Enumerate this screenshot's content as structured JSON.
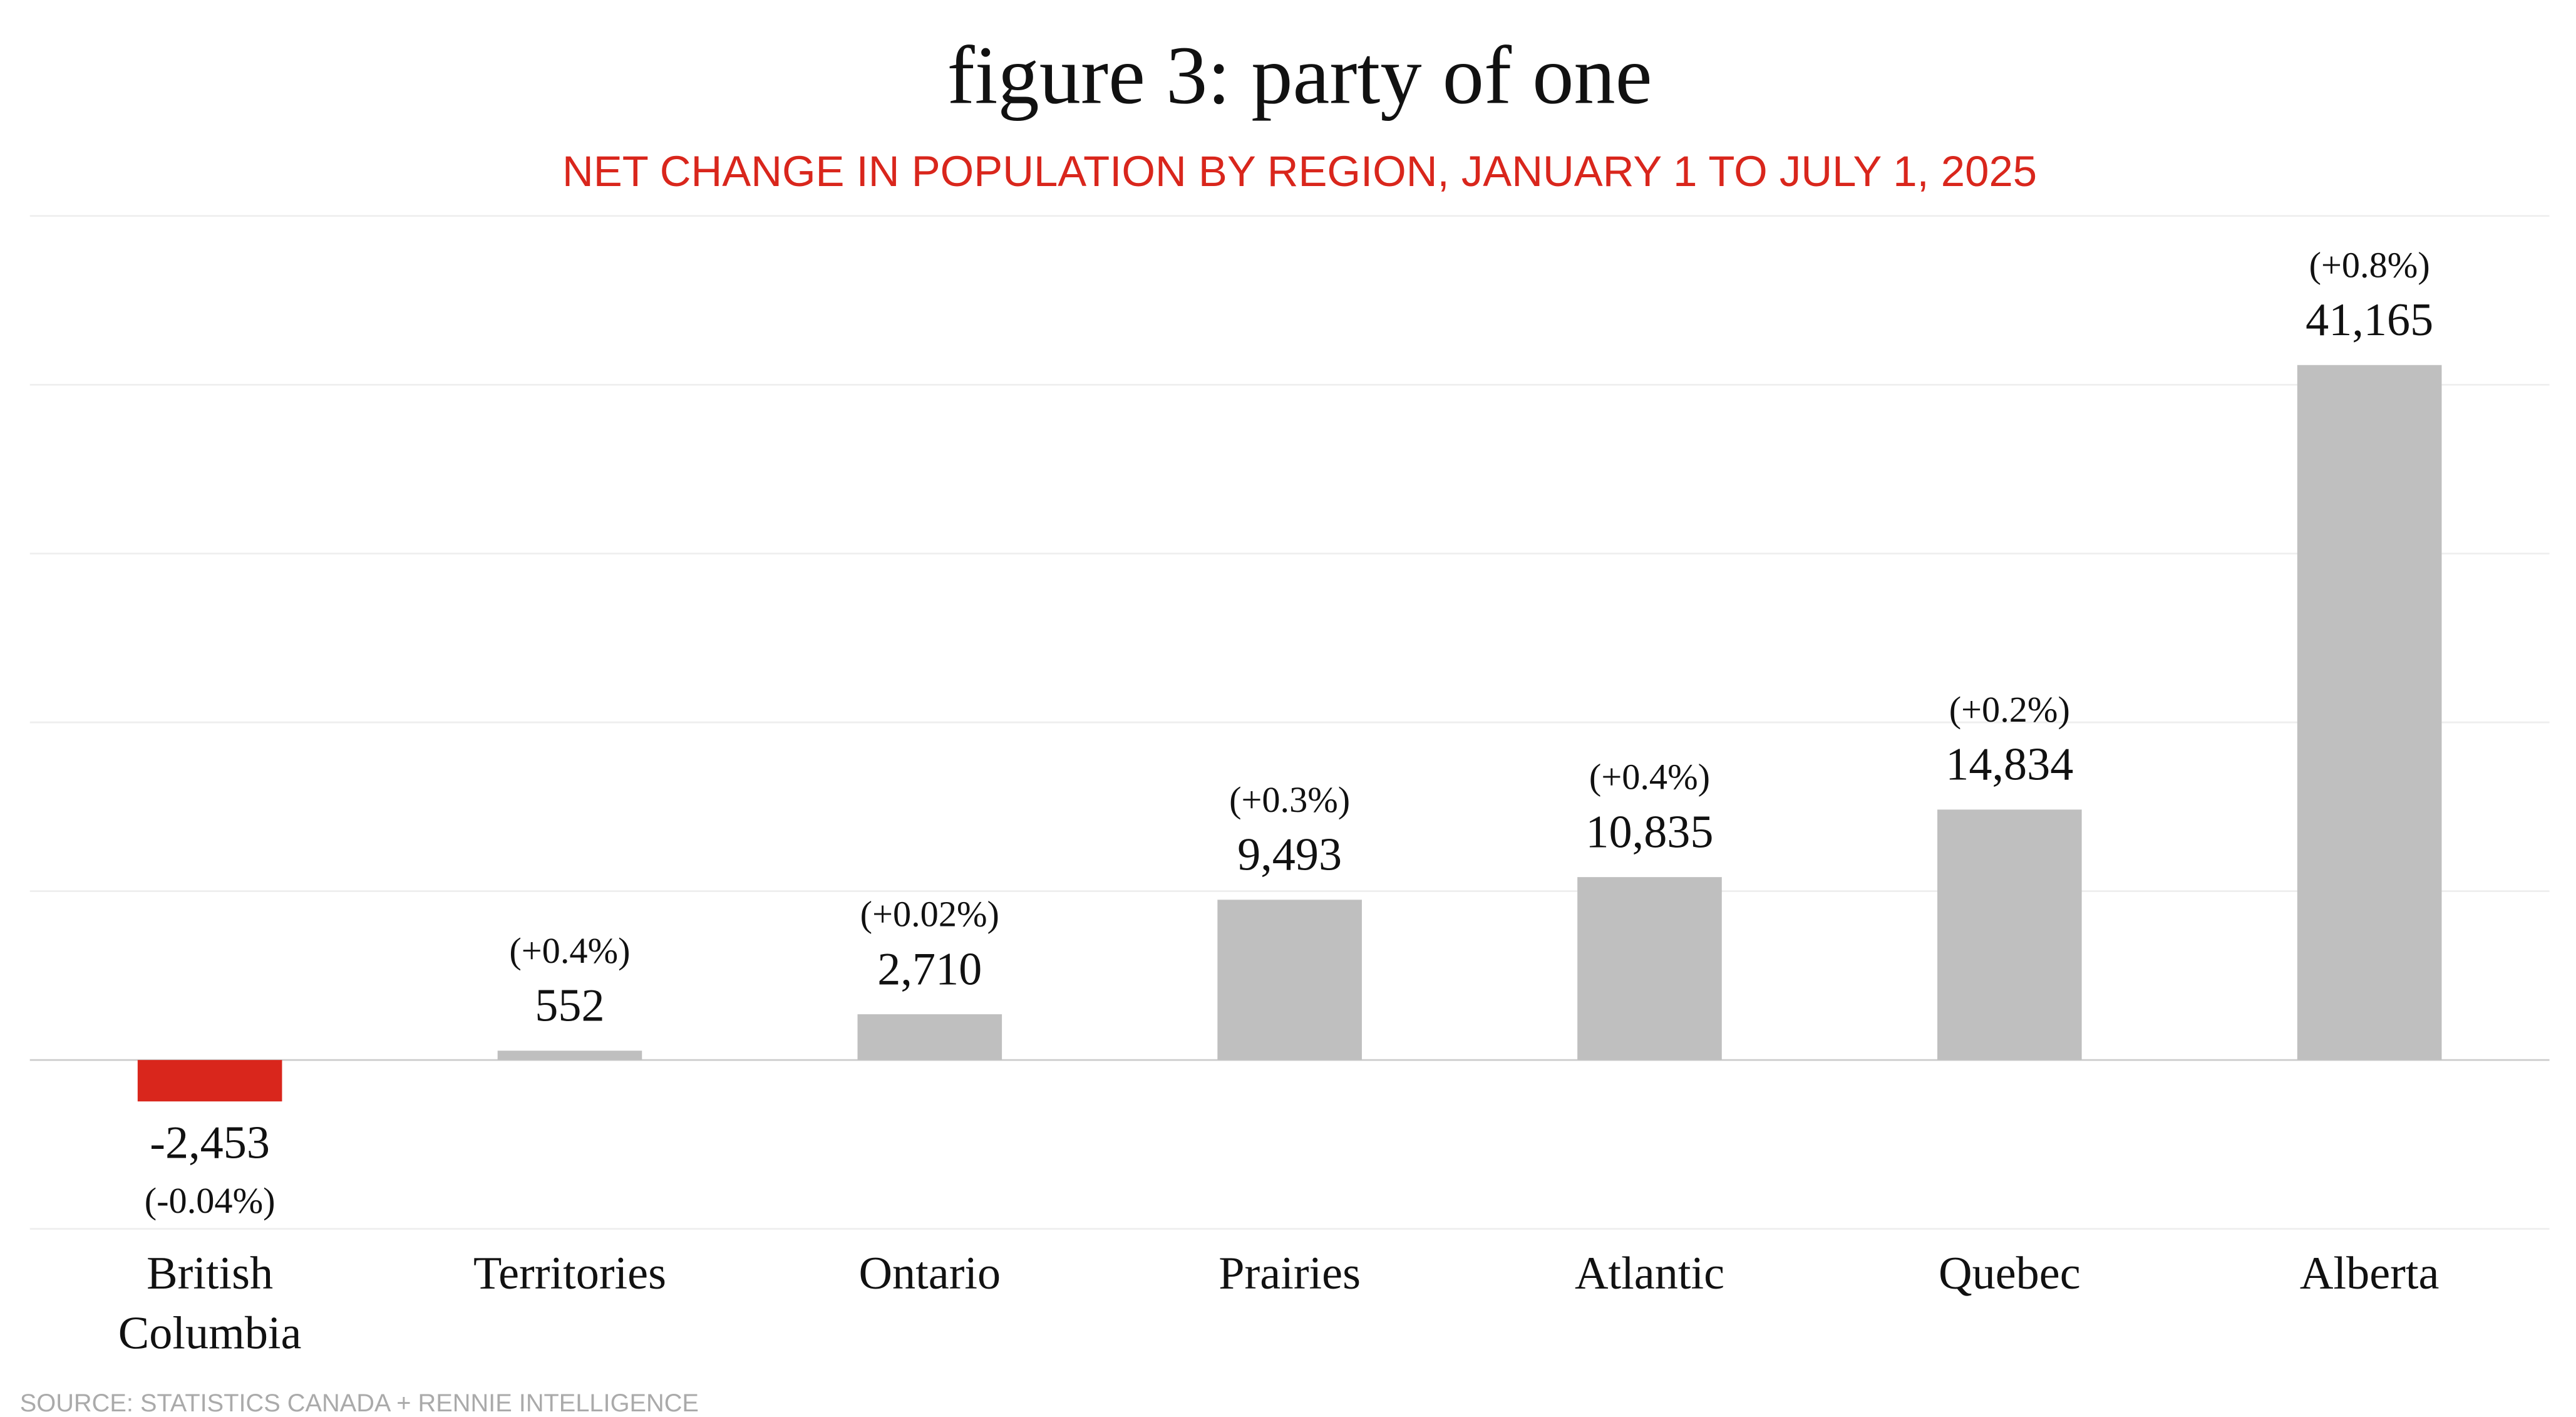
{
  "chart_data": {
    "type": "bar",
    "title": "figure 3: party of one",
    "subtitle": "NET CHANGE IN POPULATION BY REGION, JANUARY 1 TO JULY  1, 2025",
    "source": "SOURCE: STATISTICS CANADA + RENNIE INTELLIGENCE",
    "categories": [
      "British Columbia",
      "Territories",
      "Ontario",
      "Prairies",
      "Atlantic",
      "Quebec",
      "Alberta"
    ],
    "values": [
      -2453,
      552,
      2710,
      9493,
      10835,
      14834,
      41165
    ],
    "value_labels": [
      "-2,453",
      "552",
      "2,710",
      "9,493",
      "10,835",
      "14,834",
      "41,165"
    ],
    "pct": [
      -0.04,
      0.4,
      0.02,
      0.3,
      0.4,
      0.2,
      0.8
    ],
    "pct_labels": [
      "(-0.04%)",
      "(+0.4%)",
      "(+0.02%)",
      "(+0.3%)",
      "(+0.4%)",
      "(+0.2%)",
      "(+0.8%)"
    ],
    "colors": [
      "#d9261c",
      "#bfbfbf",
      "#bfbfbf",
      "#bfbfbf",
      "#bfbfbf",
      "#bfbfbf",
      "#bfbfbf"
    ],
    "ylim": [
      -10000,
      50000
    ],
    "yticks": [
      -10000,
      0,
      10000,
      20000,
      30000,
      40000,
      50000
    ],
    "grid": true
  }
}
